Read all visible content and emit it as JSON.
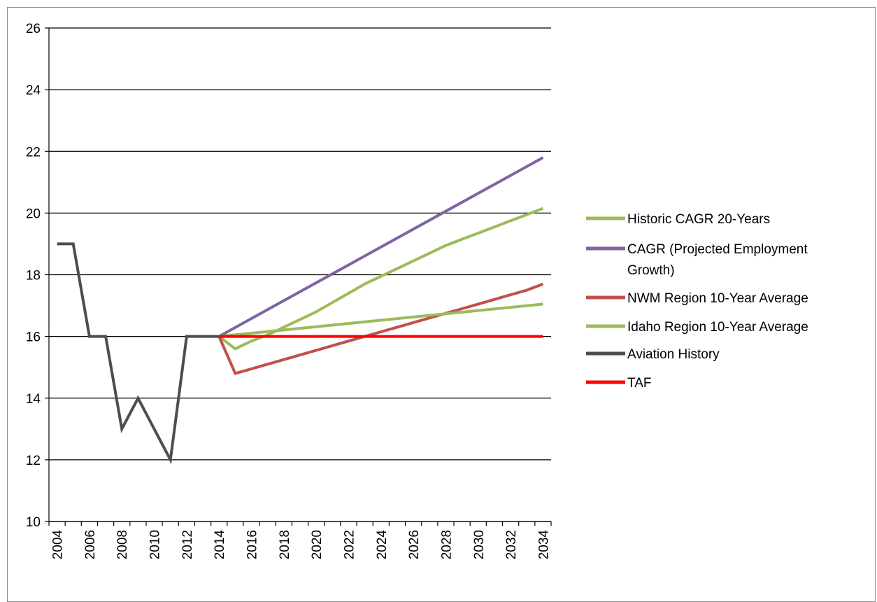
{
  "chart_data": {
    "type": "line",
    "title": "",
    "xlabel": "",
    "ylabel": "",
    "ylim": [
      10,
      26
    ],
    "yticks": [
      10,
      12,
      14,
      16,
      18,
      20,
      22,
      24,
      26
    ],
    "xlim": [
      2003.5,
      2034.5
    ],
    "xticks": [
      "2004",
      "2006",
      "2008",
      "2010",
      "2012",
      "2014",
      "2016",
      "2018",
      "2020",
      "2022",
      "2024",
      "2026",
      "2028",
      "2030",
      "2032",
      "2034"
    ],
    "grid": "horizontal",
    "legend_position": "right",
    "series": [
      {
        "name": "Historic CAGR 20-Years",
        "color": "#9bbb59",
        "x": [
          2014,
          2015,
          2016,
          2017,
          2018,
          2019,
          2020,
          2021,
          2022,
          2023,
          2024,
          2025,
          2026,
          2027,
          2028,
          2029,
          2030,
          2031,
          2032,
          2033,
          2034
        ],
        "y": [
          16,
          15.6,
          15.85,
          16.05,
          16.3,
          16.55,
          16.8,
          17.1,
          17.4,
          17.7,
          17.95,
          18.2,
          18.45,
          18.7,
          18.95,
          19.15,
          19.35,
          19.55,
          19.75,
          19.95,
          20.15
        ]
      },
      {
        "name": "CAGR (Projected Employment Growth)",
        "color": "#8064a2",
        "x": [
          2014,
          2034
        ],
        "y": [
          16,
          21.8
        ]
      },
      {
        "name": "NWM Region 10-Year Average",
        "color": "#c0504d",
        "x": [
          2014,
          2015,
          2016,
          2017,
          2018,
          2019,
          2020,
          2021,
          2022,
          2023,
          2024,
          2025,
          2026,
          2027,
          2028,
          2029,
          2030,
          2031,
          2032,
          2033,
          2034
        ],
        "y": [
          16,
          14.8,
          14.95,
          15.1,
          15.25,
          15.4,
          15.55,
          15.7,
          15.85,
          16.0,
          16.15,
          16.3,
          16.45,
          16.6,
          16.75,
          16.9,
          17.05,
          17.2,
          17.35,
          17.5,
          17.7
        ]
      },
      {
        "name": "Idaho Region 10-Year Average",
        "color": "#9bbb59",
        "x": [
          2014,
          2034
        ],
        "y": [
          16,
          17.05
        ]
      },
      {
        "name": "Aviation History",
        "color": "#4d4d4d",
        "x": [
          2004,
          2005,
          2006,
          2007,
          2008,
          2009,
          2010,
          2011,
          2012,
          2013,
          2014
        ],
        "y": [
          19,
          19,
          16,
          16,
          13,
          14,
          13,
          12,
          16,
          16,
          16
        ]
      },
      {
        "name": "TAF",
        "color": "#ff0000",
        "x": [
          2014,
          2034
        ],
        "y": [
          16,
          16
        ]
      }
    ]
  }
}
